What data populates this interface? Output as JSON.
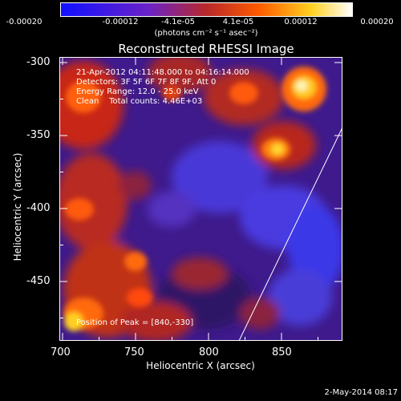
{
  "colorbar": {
    "ticks": [
      "-0.00020",
      "-0.00012",
      "-4.1e-05",
      "4.1e-05",
      "0.00012",
      "0.00020"
    ],
    "units": "(photons cm⁻² s⁻¹ asec⁻²)",
    "colors": [
      "#1010ff",
      "#6a22c8",
      "#b8282a",
      "#ff5a00",
      "#ffd020",
      "#ffffff"
    ]
  },
  "image": {
    "title": "Reconstructed RHESSI Image",
    "info": {
      "time_range": "21-Apr-2012 04:11:48.000 to 04:16:14.000",
      "detectors": "Detectors: 3F 5F 6F 7F 8F 9F, Att 0",
      "energy": "Energy Range: 12.0 - 25.0 keV",
      "method_counts": "Clean    Total counts: 4.46E+03"
    },
    "peak": "Position of Peak = [840,-330]",
    "x_axis": {
      "label": "Heliocentric X (arcsec)",
      "ticks": [
        "700",
        "750",
        "800",
        "850"
      ],
      "range": [
        700,
        890
      ]
    },
    "y_axis": {
      "label": "Heliocentric Y (arcsec)",
      "ticks": [
        "-300",
        "-350",
        "-400",
        "-450"
      ],
      "range": [
        -492,
        -298
      ]
    }
  },
  "footer": {
    "date": "2-May-2014 08:17"
  }
}
